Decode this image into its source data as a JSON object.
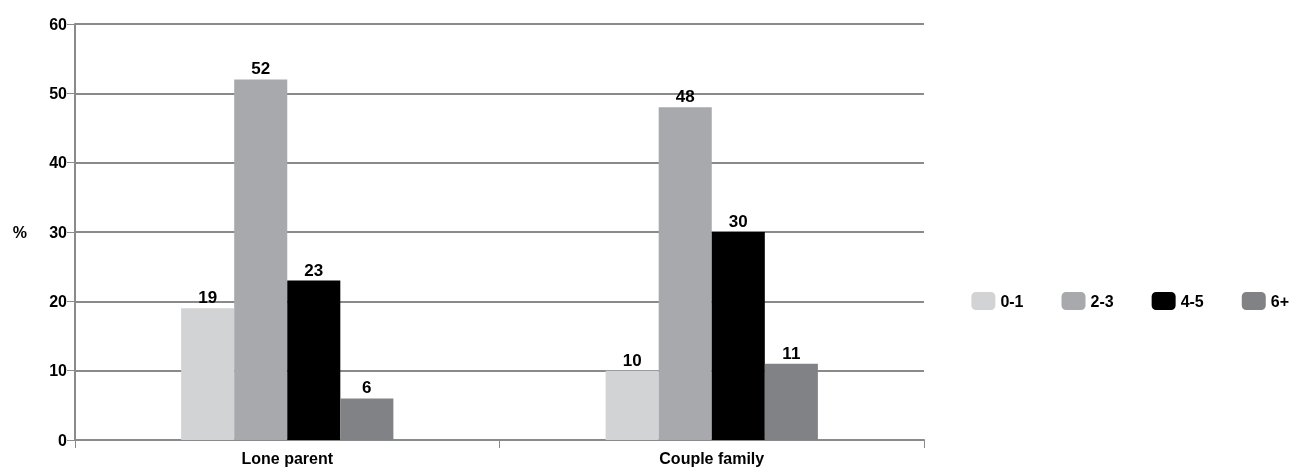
{
  "chart_data": {
    "type": "bar",
    "ylabel": "%",
    "categories": [
      "Lone parent",
      "Couple family"
    ],
    "series": [
      {
        "name": "0-1",
        "color": "#d1d3d4",
        "values": [
          19,
          10
        ]
      },
      {
        "name": "2-3",
        "color": "#a7a9ac",
        "values": [
          52,
          48
        ]
      },
      {
        "name": "4-5",
        "color": "#000000",
        "values": [
          23,
          30
        ]
      },
      {
        "name": "6+",
        "color": "#808285",
        "values": [
          6,
          11
        ]
      }
    ],
    "ylim": [
      0,
      60
    ],
    "yticks": [
      0,
      10,
      20,
      30,
      40,
      50,
      60
    ],
    "grid": "y",
    "legend": "right",
    "data_labels": true
  }
}
